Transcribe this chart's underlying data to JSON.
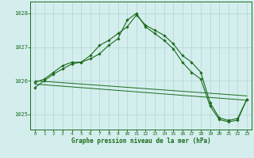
{
  "title": "Graphe pression niveau de la mer (hPa)",
  "bg_color": "#d4eeee",
  "grid_color": "#b8d8d8",
  "line_color": "#1a6b1a",
  "xlim": [
    -0.5,
    23.5
  ],
  "ylim": [
    1024.55,
    1028.35
  ],
  "yticks": [
    1025,
    1026,
    1027,
    1028
  ],
  "xticks": [
    0,
    1,
    2,
    3,
    4,
    5,
    6,
    7,
    8,
    9,
    10,
    11,
    12,
    13,
    14,
    15,
    16,
    17,
    18,
    19,
    20,
    21,
    22,
    23
  ],
  "series1": [
    1025.95,
    1026.05,
    1026.25,
    1026.45,
    1026.55,
    1026.55,
    1026.75,
    1027.05,
    1027.2,
    1027.4,
    1027.6,
    1027.95,
    1027.65,
    1027.5,
    1027.35,
    1027.1,
    1026.75,
    1026.55,
    1026.25,
    1025.35,
    1024.9,
    1024.82,
    1024.88,
    1025.45
  ],
  "series2": [
    1025.8,
    1026.0,
    1026.2,
    1026.35,
    1026.5,
    1026.55,
    1026.65,
    1026.8,
    1027.05,
    1027.25,
    1027.8,
    1028.0,
    1027.6,
    1027.4,
    1027.2,
    1026.95,
    1026.55,
    1026.25,
    1026.05,
    1025.25,
    1024.85,
    1024.78,
    1024.83,
    1025.45
  ],
  "trend1_x": [
    0,
    23
  ],
  "trend1_y": [
    1026.0,
    1025.55
  ],
  "trend2_x": [
    0,
    23
  ],
  "trend2_y": [
    1025.9,
    1025.42
  ]
}
